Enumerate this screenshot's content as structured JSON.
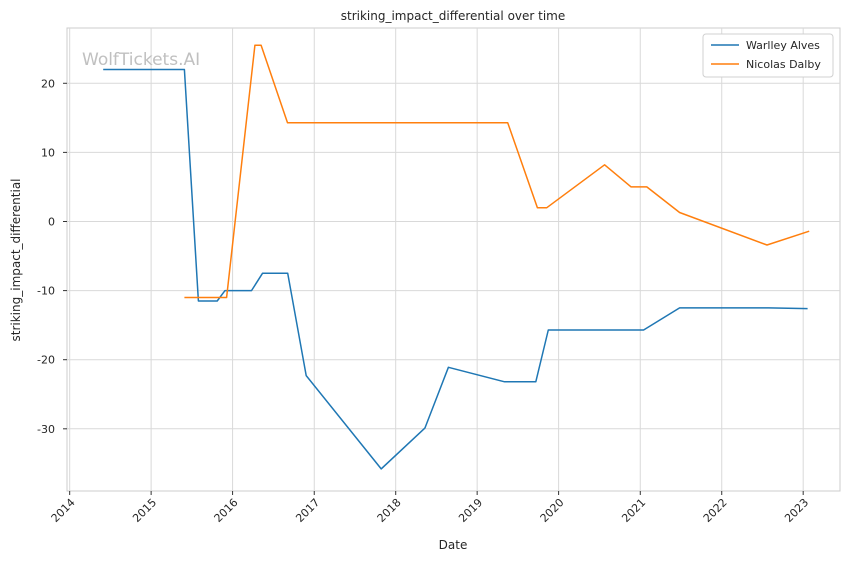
{
  "chart_data": {
    "type": "line",
    "title": "striking_impact_differential over time",
    "xlabel": "Date",
    "ylabel": "striking_impact_differential",
    "watermark": "WolfTickets.AI",
    "x_ticks": [
      "2014",
      "2015",
      "2016",
      "2017",
      "2018",
      "2019",
      "2020",
      "2021",
      "2022",
      "2023"
    ],
    "y_ticks": [
      20,
      10,
      0,
      -10,
      -20,
      -30
    ],
    "xlim": [
      "2013-12-20",
      "2023-06-15"
    ],
    "ylim": [
      -39,
      28
    ],
    "grid": true,
    "legend_position": "top-right",
    "series": [
      {
        "name": "Warlley Alves",
        "color": "#1f77b4",
        "points": [
          [
            "2014-05-31",
            22
          ],
          [
            "2015-05-30",
            22
          ],
          [
            "2015-08-01",
            -11.5
          ],
          [
            "2015-10-24",
            -11.5
          ],
          [
            "2015-11-28",
            -10
          ],
          [
            "2016-03-26",
            -10
          ],
          [
            "2016-05-14",
            -7.5
          ],
          [
            "2016-09-04",
            -7.5
          ],
          [
            "2016-11-26",
            -22.3
          ],
          [
            "2017-10-28",
            -35.8
          ],
          [
            "2018-05-12",
            -29.9
          ],
          [
            "2018-08-25",
            -21.1
          ],
          [
            "2019-05-04",
            -23.2
          ],
          [
            "2019-09-21",
            -23.2
          ],
          [
            "2019-11-16",
            -15.7
          ],
          [
            "2021-01-16",
            -15.7
          ],
          [
            "2021-06-26",
            -12.5
          ],
          [
            "2022-07-30",
            -12.5
          ],
          [
            "2023-01-21",
            -12.6
          ]
        ]
      },
      {
        "name": "Nicolas Dalby",
        "color": "#ff7f0e",
        "points": [
          [
            "2015-05-30",
            -11
          ],
          [
            "2015-12-05",
            -11
          ],
          [
            "2016-04-10",
            25.5
          ],
          [
            "2016-05-08",
            25.5
          ],
          [
            "2016-09-03",
            14.3
          ],
          [
            "2019-05-18",
            14.3
          ],
          [
            "2019-09-28",
            2
          ],
          [
            "2019-11-09",
            2
          ],
          [
            "2020-07-25",
            8.2
          ],
          [
            "2020-11-21",
            5
          ],
          [
            "2021-01-30",
            5
          ],
          [
            "2021-06-26",
            1.3
          ],
          [
            "2022-07-23",
            -3.4
          ],
          [
            "2023-01-28",
            -1.4
          ]
        ]
      }
    ]
  }
}
